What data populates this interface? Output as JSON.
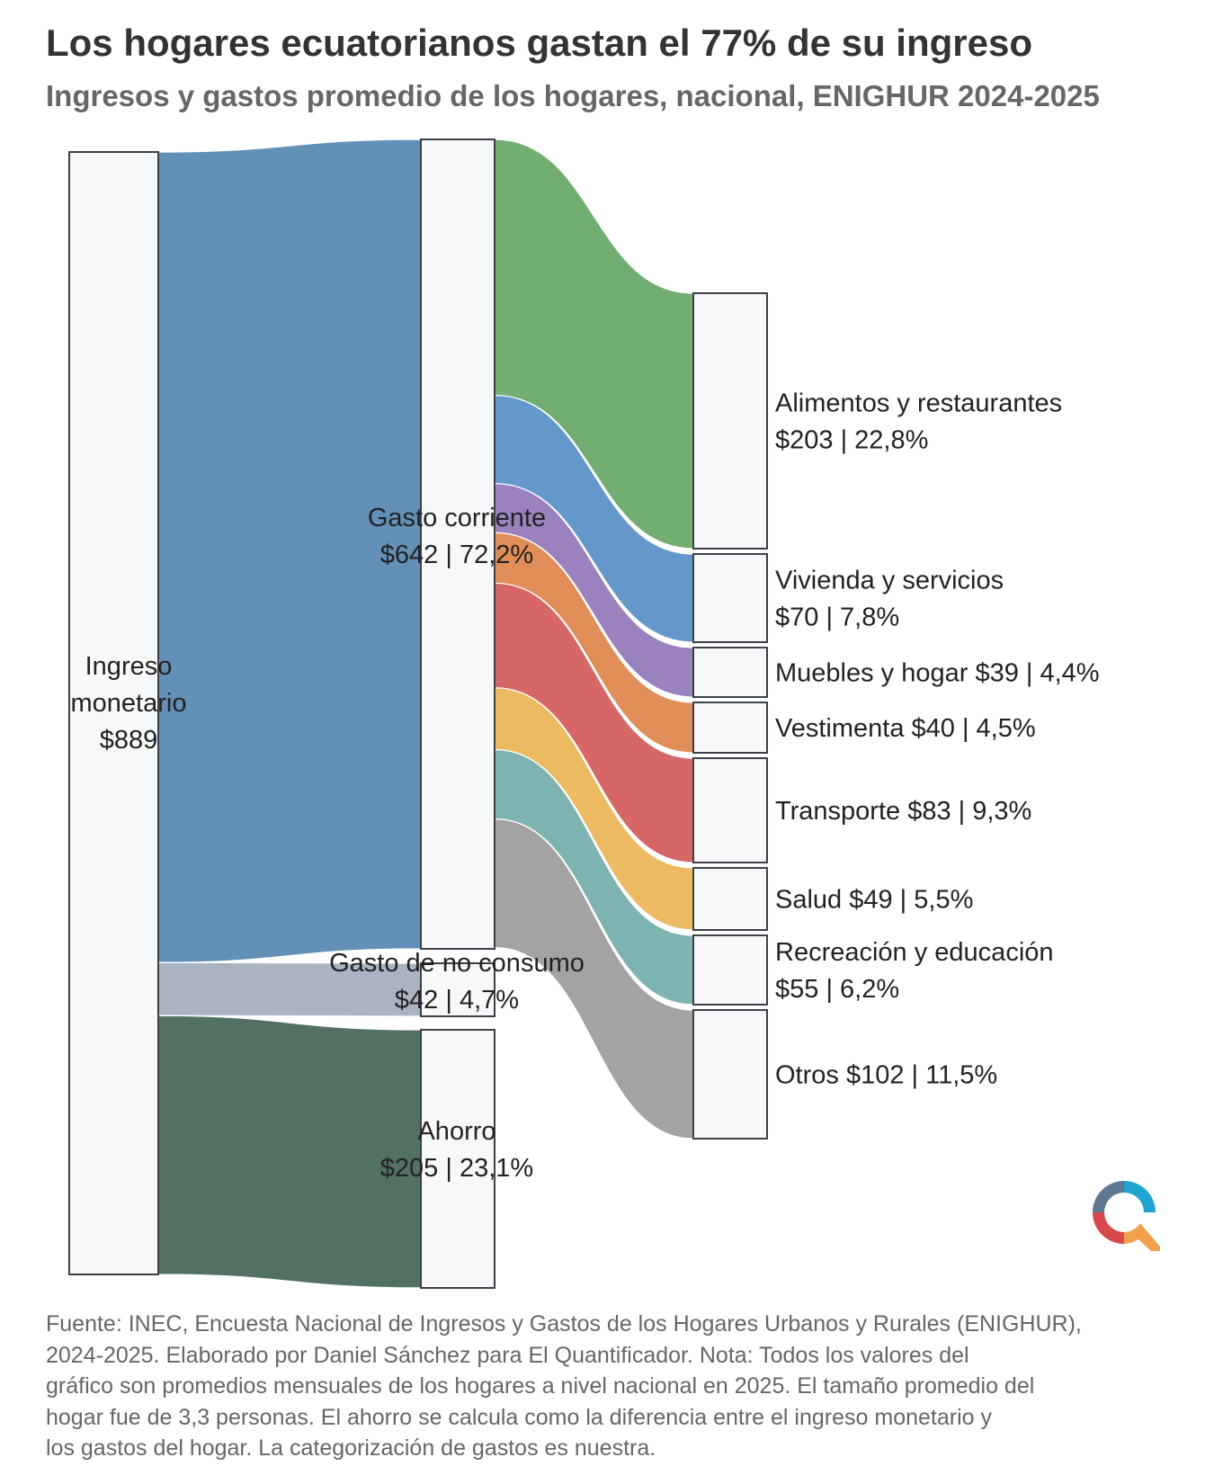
{
  "title": "Los hogares ecuatorianos gastan el 77% de su ingreso",
  "subtitle": "Ingresos y gastos promedio de los hogares, nacional, ENIGHUR 2024-2025",
  "source_lines": [
    "Fuente: INEC, Encuesta Nacional de Ingresos y Gastos de los Hogares Urbanos y Rurales (ENIGHUR),",
    "2024-2025. Elaborado por Daniel Sánchez para El Quantificador. Nota: Todos los valores del",
    "gráfico son promedios mensuales de los hogares a nivel nacional en 2025. El tamaño promedio del",
    "hogar fue de 3,3 personas. El ahorro se calcula como la diferencia entre el ingreso monetario y",
    "los gastos del hogar. La categorización de gastos es nuestra."
  ],
  "logo": {
    "name": "El Quantificador logo",
    "colors": [
      "#5f7891",
      "#1ea5d0",
      "#d9484d",
      "#f0a14a"
    ]
  },
  "chart_data": {
    "type": "sankey",
    "nodes": [
      {
        "id": "ingreso",
        "label_lines": [
          "Ingreso",
          "monetario",
          "$889"
        ],
        "value": 889
      },
      {
        "id": "gasto_corriente",
        "label_lines": [
          "Gasto corriente",
          "$642 | 72,2%"
        ],
        "value": 642,
        "percent": 72.2
      },
      {
        "id": "gasto_no_consumo",
        "label_lines": [
          "Gasto de no consumo",
          "$42 | 4,7%"
        ],
        "value": 42,
        "percent": 4.7
      },
      {
        "id": "ahorro",
        "label_lines": [
          "Ahorro",
          "$205 | 23,1%"
        ],
        "value": 205,
        "percent": 23.1
      },
      {
        "id": "alimentos",
        "label_lines": [
          "Alimentos y restaurantes",
          "$203 | 22,8%"
        ],
        "value": 203,
        "percent": 22.8
      },
      {
        "id": "vivienda",
        "label_lines": [
          "Vivienda y servicios",
          "$70 | 7,8%"
        ],
        "value": 70,
        "percent": 7.8
      },
      {
        "id": "muebles",
        "label_lines": [
          "Muebles y hogar $39 | 4,4%"
        ],
        "value": 39,
        "percent": 4.4
      },
      {
        "id": "vestimenta",
        "label_lines": [
          "Vestimenta $40 | 4,5%"
        ],
        "value": 40,
        "percent": 4.5
      },
      {
        "id": "transporte",
        "label_lines": [
          "Transporte $83 | 9,3%"
        ],
        "value": 83,
        "percent": 9.3
      },
      {
        "id": "salud",
        "label_lines": [
          "Salud $49 | 5,5%"
        ],
        "value": 49,
        "percent": 5.5
      },
      {
        "id": "recreacion",
        "label_lines": [
          "Recreación y educación",
          "$55 | 6,2%"
        ],
        "value": 55,
        "percent": 6.2
      },
      {
        "id": "otros",
        "label_lines": [
          "Otros $102 | 11,5%"
        ],
        "value": 102,
        "percent": 11.5
      }
    ],
    "links": [
      {
        "source": "ingreso",
        "target": "gasto_corriente",
        "value": 642,
        "color": "#6290b7"
      },
      {
        "source": "ingreso",
        "target": "gasto_no_consumo",
        "value": 42,
        "color": "#a9b3c2"
      },
      {
        "source": "ingreso",
        "target": "ahorro",
        "value": 205,
        "color": "#527163"
      },
      {
        "source": "gasto_corriente",
        "target": "alimentos",
        "value": 203,
        "color": "#72ae72"
      },
      {
        "source": "gasto_corriente",
        "target": "vivienda",
        "value": 70,
        "color": "#6498cb"
      },
      {
        "source": "gasto_corriente",
        "target": "muebles",
        "value": 39,
        "color": "#9a82be"
      },
      {
        "source": "gasto_corriente",
        "target": "vestimenta",
        "value": 40,
        "color": "#e08d58"
      },
      {
        "source": "gasto_corriente",
        "target": "transporte",
        "value": 83,
        "color": "#d76666"
      },
      {
        "source": "gasto_corriente",
        "target": "salud",
        "value": 49,
        "color": "#ecba60"
      },
      {
        "source": "gasto_corriente",
        "target": "recreacion",
        "value": 55,
        "color": "#7db4b1"
      },
      {
        "source": "gasto_corriente",
        "target": "otros",
        "value": 102,
        "color": "#a3a3a3"
      }
    ]
  }
}
